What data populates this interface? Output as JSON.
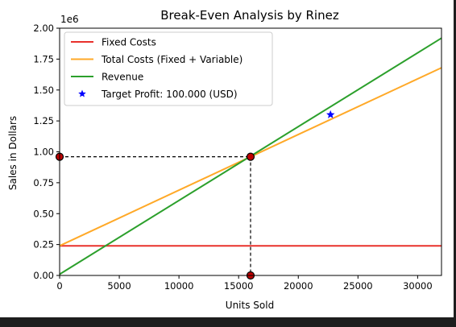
{
  "chart_data": {
    "type": "line",
    "title": "Break-Even Analysis by Rinez",
    "xlabel": "Units Sold",
    "ylabel": "Sales in Dollars",
    "y_offset_label": "1e6",
    "xlim": [
      0,
      32000
    ],
    "ylim": [
      0,
      2000000
    ],
    "x_ticks": [
      0,
      5000,
      10000,
      15000,
      20000,
      25000,
      30000
    ],
    "x_tick_labels": [
      "0",
      "5000",
      "10000",
      "15000",
      "20000",
      "25000",
      "30000"
    ],
    "y_ticks": [
      0,
      250000,
      500000,
      750000,
      1000000,
      1250000,
      1500000,
      1750000,
      2000000
    ],
    "y_tick_labels": [
      "0.00",
      "0.25",
      "0.50",
      "0.75",
      "1.00",
      "1.25",
      "1.50",
      "1.75",
      "2.00"
    ],
    "grid": false,
    "legend_position": "top-left",
    "series": [
      {
        "name": "Fixed Costs",
        "color": "#e8302c",
        "x": [
          0,
          32000
        ],
        "y": [
          240000,
          240000
        ]
      },
      {
        "name": "Total Costs (Fixed + Variable)",
        "color": "#ffa928",
        "x": [
          0,
          32000
        ],
        "y": [
          240000,
          1680000
        ]
      },
      {
        "name": "Revenue",
        "color": "#2ca02c",
        "x": [
          0,
          32000
        ],
        "y": [
          10000,
          1920000
        ]
      }
    ],
    "target_profit": {
      "name": "Target Profit: 100.000 (USD)",
      "color": "#0000ff",
      "x": 22700,
      "y": 1300000
    },
    "break_even": {
      "x": 16000,
      "y": 960000,
      "color": "#c00000"
    }
  }
}
